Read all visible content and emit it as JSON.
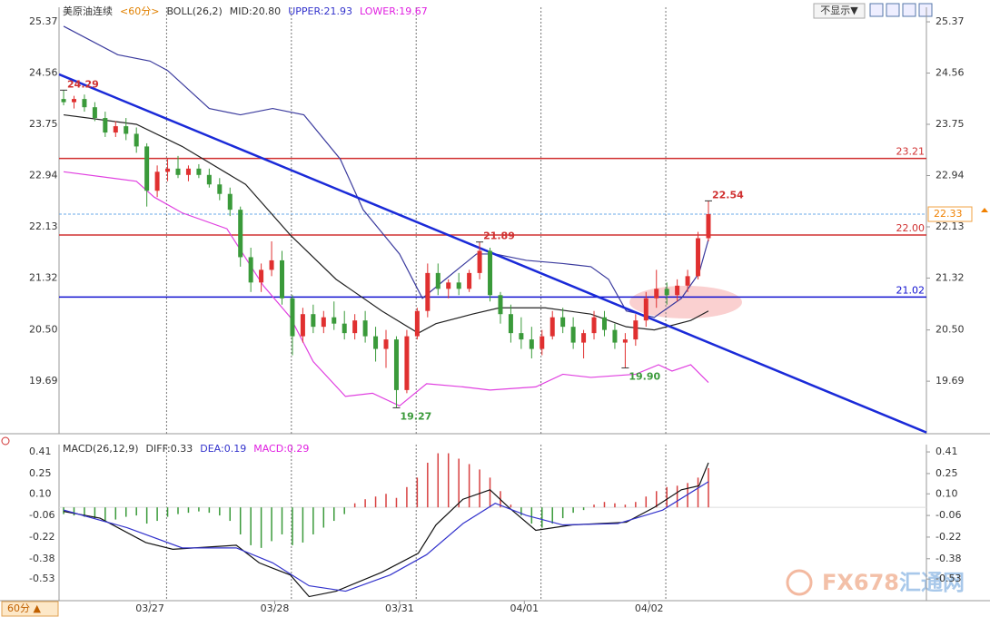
{
  "toolbar": {
    "button": "不显示▼",
    "period_switch": "60分 ▲",
    "watermark": [
      "FX678",
      "汇通网"
    ]
  },
  "chart_data": [
    {
      "type": "candlestick",
      "title": "美原油连续",
      "subtitle": "<60分>",
      "indicator_labels": [
        {
          "text": "BOLL(26,2)",
          "color": "#333333"
        },
        {
          "text": "MID:20.80",
          "color": "#333333"
        },
        {
          "text": "UPPER:21.93",
          "color": "#3333cc"
        },
        {
          "text": "LOWER:19.67",
          "color": "#e020e0"
        }
      ],
      "open": [
        24.15,
        24.1,
        24.15,
        24.02,
        23.85,
        23.62,
        23.72,
        23.6,
        23.4,
        22.7,
        23.0,
        23.05,
        22.95,
        23.05,
        22.95,
        22.8,
        22.65,
        22.4,
        21.65,
        21.25,
        21.45,
        21.6,
        21.0,
        20.4,
        20.75,
        20.55,
        20.7,
        20.6,
        20.45,
        20.65,
        20.4,
        20.2,
        20.35,
        19.55,
        20.4,
        20.8,
        21.4,
        21.15,
        21.25,
        21.15,
        21.4,
        21.75,
        21.05,
        20.75,
        20.45,
        20.35,
        20.2,
        20.4,
        20.7,
        20.55,
        20.3,
        20.45,
        20.7,
        20.5,
        20.3,
        20.35,
        20.65,
        21.0,
        21.15,
        21.05,
        21.2,
        21.35,
        21.95
      ],
      "high": [
        24.29,
        24.2,
        24.22,
        24.1,
        23.95,
        23.8,
        23.85,
        23.7,
        23.45,
        23.1,
        23.2,
        23.25,
        23.1,
        23.12,
        23.05,
        22.9,
        22.75,
        22.45,
        21.8,
        21.55,
        21.9,
        21.75,
        21.05,
        20.85,
        20.9,
        20.8,
        20.95,
        20.8,
        20.75,
        20.8,
        20.55,
        20.5,
        20.4,
        20.5,
        20.85,
        21.55,
        21.55,
        21.3,
        21.4,
        21.45,
        21.89,
        21.8,
        21.1,
        20.9,
        20.7,
        20.55,
        20.5,
        20.8,
        20.85,
        20.7,
        20.5,
        20.8,
        20.8,
        20.6,
        20.45,
        20.75,
        21.1,
        21.45,
        21.25,
        21.3,
        21.45,
        22.05,
        22.54
      ],
      "low": [
        24.05,
        24.0,
        23.95,
        23.8,
        23.55,
        23.55,
        23.5,
        23.3,
        22.45,
        22.6,
        22.85,
        22.9,
        22.85,
        22.9,
        22.75,
        22.55,
        22.3,
        21.5,
        21.1,
        21.1,
        21.35,
        20.9,
        20.1,
        20.3,
        20.45,
        20.45,
        20.5,
        20.35,
        20.35,
        20.3,
        20.0,
        19.9,
        19.27,
        19.5,
        20.35,
        20.7,
        21.05,
        21.0,
        21.05,
        21.1,
        21.3,
        20.95,
        20.6,
        20.3,
        20.2,
        20.05,
        20.1,
        20.35,
        20.45,
        20.2,
        20.05,
        20.35,
        20.4,
        20.2,
        19.9,
        20.25,
        20.55,
        20.85,
        20.9,
        20.95,
        21.1,
        21.3,
        21.9
      ],
      "close": [
        24.1,
        24.15,
        24.02,
        23.85,
        23.62,
        23.72,
        23.6,
        23.4,
        22.7,
        23.0,
        23.05,
        22.95,
        23.05,
        22.95,
        22.8,
        22.65,
        22.4,
        21.65,
        21.25,
        21.45,
        21.6,
        21.0,
        20.4,
        20.75,
        20.55,
        20.7,
        20.6,
        20.45,
        20.65,
        20.4,
        20.2,
        20.35,
        19.55,
        20.4,
        20.8,
        21.4,
        21.15,
        21.25,
        21.15,
        21.4,
        21.75,
        21.05,
        20.75,
        20.45,
        20.35,
        20.2,
        20.4,
        20.7,
        20.55,
        20.3,
        20.45,
        20.7,
        20.5,
        20.3,
        20.35,
        20.65,
        21.0,
        21.15,
        21.05,
        21.2,
        21.35,
        21.95,
        22.33
      ],
      "up_color": "#e03030",
      "down_color": "#3a9a3a",
      "xlim": [
        -0.44,
        82.96
      ],
      "xticks": [
        {
          "value": 8.3,
          "label": "03/27"
        },
        {
          "value": 20.3,
          "label": "03/28"
        },
        {
          "value": 32.3,
          "label": "03/31"
        },
        {
          "value": 44.3,
          "label": "04/01"
        },
        {
          "value": 56.3,
          "label": "04/02"
        }
      ],
      "vlines": [
        9.9,
        21.9,
        33.9,
        45.9,
        57.9
      ],
      "ylim": [
        18.86,
        25.6
      ],
      "yticks": [
        25.37,
        24.56,
        23.75,
        22.94,
        22.13,
        21.32,
        {
          "value": 20.5,
          "label": "20.50"
        },
        19.69
      ],
      "series": [
        {
          "color": "#222222",
          "x": [
            0,
            7,
            11.4,
            17.5,
            21.8,
            26.2,
            30.6,
            34.1,
            35.8,
            39.3,
            41.9,
            46.3,
            50.7,
            54.1,
            56.8,
            60.3,
            62
          ],
          "values": [
            23.9,
            23.75,
            23.4,
            22.8,
            22.0,
            21.3,
            20.8,
            20.45,
            20.6,
            20.75,
            20.85,
            20.85,
            20.75,
            20.55,
            20.5,
            20.65,
            20.8
          ]
        },
        {
          "color": "#3b3b9e",
          "x": [
            0,
            5.2,
            8.3,
            10,
            14,
            17,
            20.1,
            23.1,
            26.6,
            28.8,
            32.3,
            34.5,
            36.7,
            39.7,
            41.5,
            44.5,
            48,
            50.7,
            52.4,
            54.1,
            56.8,
            59.4,
            61.1,
            62
          ],
          "values": [
            25.3,
            24.85,
            24.75,
            24.6,
            24.0,
            23.9,
            24.0,
            23.9,
            23.2,
            22.4,
            21.7,
            21.0,
            21.3,
            21.7,
            21.7,
            21.6,
            21.55,
            21.5,
            21.3,
            20.8,
            20.7,
            21.0,
            21.4,
            21.93
          ]
        },
        {
          "color": "#e040e0",
          "x": [
            0,
            7,
            8.7,
            11.4,
            15.7,
            19.2,
            21.8,
            24,
            27.1,
            29.7,
            32.3,
            34.9,
            38.4,
            41,
            45.4,
            48,
            50.7,
            55,
            57.2,
            58.5,
            60.3,
            62
          ],
          "values": [
            23.0,
            22.85,
            22.6,
            22.35,
            22.1,
            21.2,
            20.7,
            20.0,
            19.45,
            19.5,
            19.3,
            19.65,
            19.6,
            19.55,
            19.6,
            19.8,
            19.75,
            19.8,
            19.95,
            19.85,
            19.95,
            19.67
          ]
        }
      ],
      "hlines": [
        {
          "value": 23.21,
          "color": "#d03030"
        },
        {
          "value": 22.0,
          "label": "22.00",
          "color": "#d03030"
        },
        {
          "value": 21.02,
          "color": "#1010d0"
        }
      ],
      "price_line": {
        "value": 22.33,
        "color": "#6aa8e8"
      },
      "trendline": {
        "x": [
          -0.44,
          82.96
        ],
        "values": [
          24.54,
          18.88
        ],
        "color": "#1a2ad8"
      },
      "extremes": [
        {
          "x": 0,
          "value": 24.29,
          "position": "above",
          "color": "#d03030"
        },
        {
          "x": 40,
          "value": 21.89,
          "position": "above",
          "color": "#d03030"
        },
        {
          "x": 32,
          "value": 19.27,
          "position": "below",
          "color": "#3a9a3a"
        },
        {
          "x": 54,
          "value": 19.9,
          "label": "19.90",
          "position": "below",
          "color": "#3a9a3a"
        },
        {
          "x": 62,
          "value": 22.54,
          "position": "above",
          "color": "#d03030"
        }
      ]
    },
    {
      "type": "macd",
      "title": "MACD(26,12,9)",
      "indicator_labels": [
        {
          "text": "DIFF:0.33",
          "color": "#333333"
        },
        {
          "text": "DEA:0.19",
          "color": "#3333cc"
        },
        {
          "text": "MACD:0.29",
          "color": "#e020e0"
        }
      ],
      "values": [
        -0.05,
        -0.06,
        -0.07,
        -0.08,
        -0.1,
        -0.09,
        -0.07,
        -0.06,
        -0.12,
        -0.1,
        -0.07,
        -0.05,
        -0.04,
        -0.03,
        -0.04,
        -0.06,
        -0.1,
        -0.2,
        -0.28,
        -0.3,
        -0.25,
        -0.2,
        -0.28,
        -0.26,
        -0.2,
        -0.15,
        -0.1,
        -0.05,
        0.03,
        0.06,
        0.08,
        0.1,
        0.07,
        0.15,
        0.22,
        0.33,
        0.4,
        0.4,
        0.36,
        0.32,
        0.28,
        0.22,
        0.12,
        0.02,
        -0.06,
        -0.12,
        -0.15,
        -0.12,
        -0.08,
        -0.04,
        -0.02,
        0.02,
        0.04,
        0.03,
        0.02,
        0.04,
        0.08,
        0.12,
        0.15,
        0.16,
        0.18,
        0.22,
        0.29
      ],
      "up_color": "#d84040",
      "down_color": "#3a9a3a",
      "ylim": [
        -0.69,
        0.464
      ],
      "yticks": [
        0.41,
        0.25,
        {
          "value": 0.1,
          "label": "0.10"
        },
        -0.06,
        -0.22,
        -0.38,
        -0.53
      ],
      "series": [
        {
          "color": "#111111",
          "x": [
            0,
            3.5,
            7.9,
            10.5,
            16.6,
            18.8,
            20.1,
            21.8,
            23.6,
            26.2,
            30.6,
            34.1,
            35.8,
            38.4,
            41,
            42.8,
            45.4,
            48.9,
            54.1,
            56.8,
            59.4,
            61.1,
            62
          ],
          "values": [
            -0.03,
            -0.08,
            -0.26,
            -0.31,
            -0.28,
            -0.41,
            -0.45,
            -0.5,
            -0.66,
            -0.62,
            -0.48,
            -0.34,
            -0.13,
            0.06,
            0.13,
            0.0,
            -0.17,
            -0.13,
            -0.11,
            0.0,
            0.13,
            0.16,
            0.33
          ]
        },
        {
          "color": "#3333cc",
          "x": [
            0,
            6.1,
            11.4,
            16.6,
            20.1,
            23.6,
            27.1,
            31.4,
            34.9,
            38.4,
            41.5,
            44.5,
            48,
            53.3,
            57.6,
            62
          ],
          "values": [
            -0.02,
            -0.15,
            -0.3,
            -0.3,
            -0.41,
            -0.58,
            -0.62,
            -0.5,
            -0.35,
            -0.12,
            0.03,
            -0.06,
            -0.13,
            -0.12,
            -0.02,
            0.19
          ]
        }
      ]
    }
  ]
}
